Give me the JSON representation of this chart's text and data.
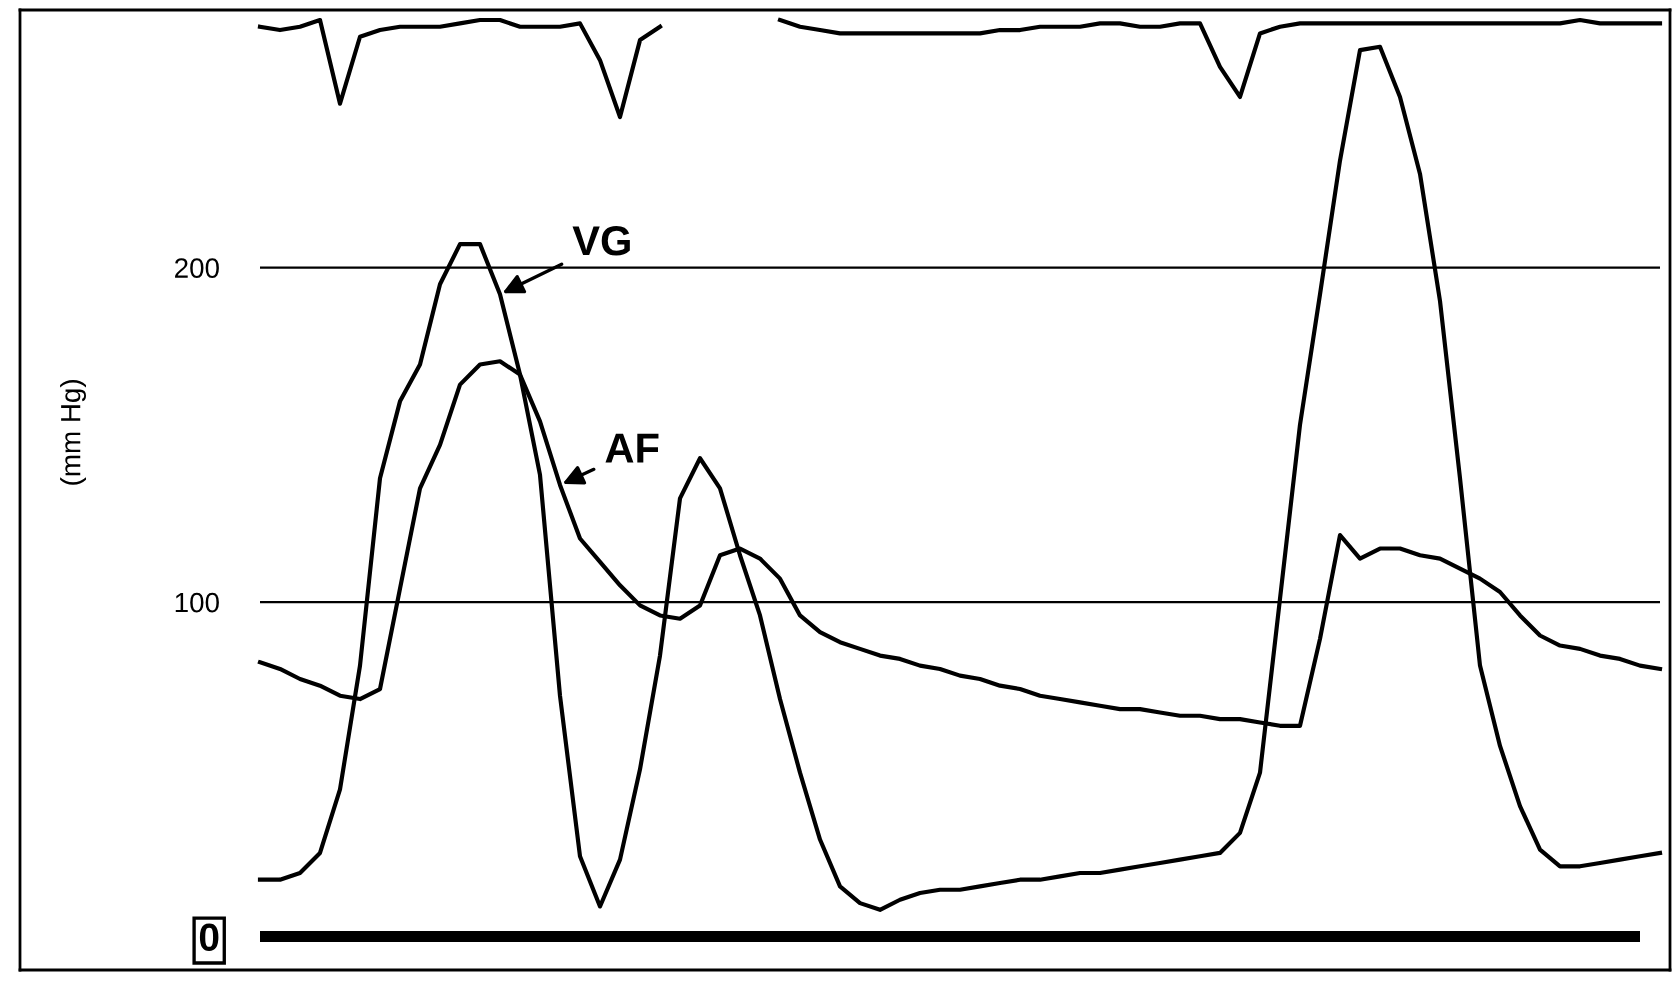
{
  "chart_data": {
    "type": "line",
    "ylabel": "(mm Hg)",
    "categories": [
      null,
      null,
      null,
      null,
      null,
      null,
      null,
      null,
      null,
      null,
      null,
      null,
      null,
      null,
      null,
      null,
      null,
      null,
      null,
      null,
      null,
      null,
      null,
      null,
      null,
      null,
      null,
      null,
      null,
      null,
      null,
      null,
      null,
      null,
      null,
      null,
      null,
      null,
      null,
      null,
      null,
      null,
      null,
      null,
      null,
      null,
      null,
      null,
      null,
      null,
      null,
      null,
      null,
      null,
      null,
      null,
      null,
      null,
      null,
      null,
      null,
      null,
      null,
      null,
      null,
      null,
      null,
      null,
      null,
      null,
      null
    ],
    "series": [
      {
        "color": "#000000",
        "values": [
          272,
          271,
          272,
          274,
          249,
          269,
          271,
          272,
          272,
          272,
          273,
          274,
          274,
          272,
          272,
          272,
          273,
          262,
          245,
          268,
          272,
          null,
          null,
          null,
          null,
          null,
          274,
          272,
          271,
          270,
          270,
          270,
          270,
          270,
          270,
          270,
          270,
          271,
          271,
          272,
          272,
          272,
          273,
          273,
          272,
          272,
          273,
          273,
          260,
          251,
          270,
          272,
          273,
          273,
          273,
          273,
          273,
          273,
          273,
          273,
          273,
          273,
          273,
          273,
          273,
          273,
          274,
          273,
          273,
          273,
          273
        ]
      },
      {
        "name": "VG",
        "color": "#000000",
        "values": [
          17,
          17,
          19,
          25,
          44,
          81,
          137,
          160,
          171,
          195,
          207,
          207,
          192,
          168,
          138,
          72,
          24,
          9,
          23,
          50,
          84,
          131,
          143,
          134,
          114,
          96,
          71,
          49,
          29,
          15,
          10,
          8,
          11,
          13,
          14,
          14,
          15,
          16,
          17,
          17,
          18,
          19,
          19,
          20,
          21,
          22,
          23,
          24,
          25,
          31,
          49,
          101,
          153,
          192,
          232,
          265,
          266,
          251,
          228,
          190,
          137,
          81,
          57,
          39,
          26,
          21,
          21,
          22,
          23,
          24,
          25
        ]
      },
      {
        "name": "AF",
        "color": "#000000",
        "values": [
          82,
          80,
          77,
          75,
          72,
          71,
          74,
          104,
          134,
          147,
          165,
          171,
          172,
          168,
          154,
          135,
          119,
          112,
          105,
          99,
          96,
          95,
          99,
          114,
          116,
          113,
          107,
          96,
          91,
          88,
          86,
          84,
          83,
          81,
          80,
          78,
          77,
          75,
          74,
          72,
          71,
          70,
          69,
          68,
          68,
          67,
          66,
          66,
          65,
          65,
          64,
          63,
          63,
          89,
          120,
          113,
          116,
          116,
          114,
          113,
          110,
          107,
          103,
          96,
          90,
          87,
          86,
          84,
          83,
          81,
          80
        ]
      }
    ],
    "ylim": [
      -10,
      277
    ],
    "yticks": [
      0,
      100,
      200
    ],
    "grid": "y",
    "marker": "none",
    "line_style": "solid"
  }
}
